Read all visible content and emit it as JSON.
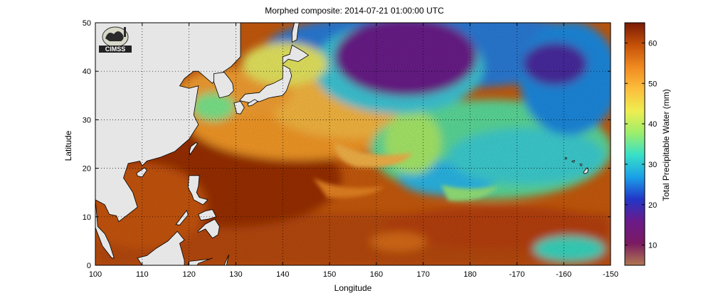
{
  "map": {
    "title": "Morphed composite: 2014-07-21 01:00:00 UTC",
    "xlabel": "Longitude",
    "ylabel": "Latitude",
    "x_ticks": [
      "100",
      "110",
      "120",
      "130",
      "140",
      "150",
      "160",
      "170",
      "180",
      "-170",
      "-160",
      "-150"
    ],
    "y_ticks": [
      "0",
      "10",
      "20",
      "30",
      "40",
      "50"
    ],
    "lon_range": [
      100,
      210
    ],
    "lat_range": [
      0,
      50
    ],
    "grid": "dotted",
    "land_color": "#e6e6e6"
  },
  "colorbar": {
    "label": "Total Precipitable Water (mm)",
    "ticks": [
      "10",
      "20",
      "30",
      "40",
      "50",
      "60"
    ],
    "range": [
      5,
      65
    ],
    "stops": [
      "#b07850",
      "#7a1a62",
      "#6a1a8a",
      "#2236c8",
      "#1aa0e8",
      "#38e0c8",
      "#9cee6a",
      "#eeee50",
      "#fcbe3c",
      "#f08a20",
      "#c45008",
      "#7a1a06"
    ]
  },
  "logo": {
    "text": "CIMSS"
  }
}
